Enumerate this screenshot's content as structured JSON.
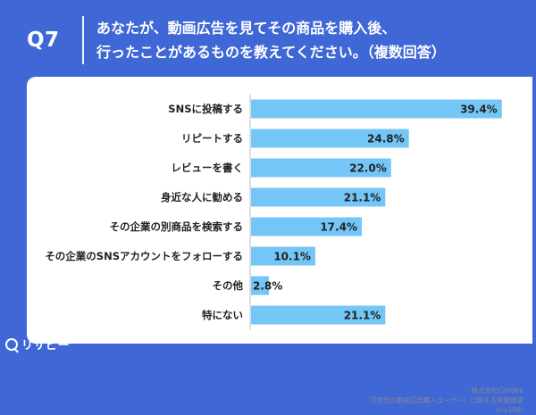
{
  "header": {
    "question_number": "Q7",
    "title_line1": "あなたが、動画広告を見てその商品を購入後、",
    "title_line2": "行ったことがあるものを教えてください。（複数回答）"
  },
  "chart_data": {
    "type": "bar",
    "orientation": "horizontal",
    "categories": [
      "SNSに投稿する",
      "リピートする",
      "レビューを書く",
      "身近な人に勧める",
      "その企業の別商品を検索する",
      "その企業のSNSアカウントをフォローする",
      "その他",
      "特にない"
    ],
    "values": [
      39.4,
      24.8,
      22.0,
      21.1,
      17.4,
      10.1,
      2.8,
      21.1
    ],
    "value_labels": [
      "39.4%",
      "24.8%",
      "22.0%",
      "21.1%",
      "17.4%",
      "10.1%",
      "2.8%",
      "21.1%"
    ],
    "unit": "%",
    "xlim": [
      0,
      40
    ],
    "bar_color": "#74c6f7",
    "grid": false
  },
  "source": {
    "line1": "株式会社Candee",
    "line2": "「Z世代の動画広告購入ユーザー」に関する実態調査",
    "line3": "(n=109)"
  },
  "logo": {
    "text": "リサピー"
  },
  "colors": {
    "background": "#3f67d6",
    "panel": "#ffffff",
    "bar": "#74c6f7",
    "text": "#222222"
  }
}
